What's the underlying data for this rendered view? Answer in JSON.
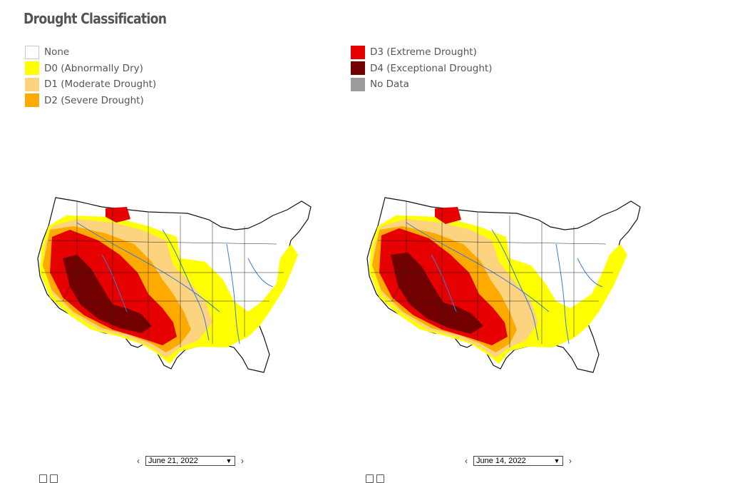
{
  "title": "Drought Classification",
  "legend": {
    "left": [
      {
        "label": "None",
        "color": "#ffffff"
      },
      {
        "label": "D0 (Abnormally Dry)",
        "color": "#ffff00"
      },
      {
        "label": "D1 (Moderate Drought)",
        "color": "#fcd37f"
      },
      {
        "label": "D2 (Severe Drought)",
        "color": "#ffaa00"
      }
    ],
    "right": [
      {
        "label": "D3 (Extreme Drought)",
        "color": "#e60000"
      },
      {
        "label": "D4 (Exceptional Drought)",
        "color": "#730000"
      },
      {
        "label": "No Data",
        "color": "#9c9c9c"
      }
    ]
  },
  "maps": [
    {
      "date": "June 21, 2022"
    },
    {
      "date": "June 14, 2022"
    }
  ]
}
